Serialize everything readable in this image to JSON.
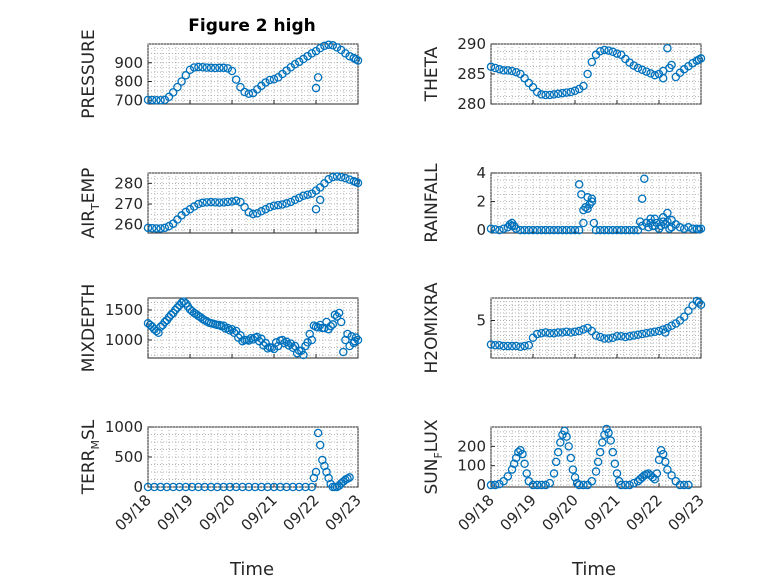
{
  "figure": {
    "title": "Figure 2 high",
    "xlabel": "Time",
    "date_ticks": [
      "09/18",
      "09/19",
      "09/20",
      "09/21",
      "09/22",
      "09/23"
    ],
    "marker_color": "#0072BD"
  },
  "chart_data": [
    {
      "type": "scatter",
      "id": "pressure",
      "ylabel": "PRESSURE",
      "ylabel_sub": "",
      "ylabel_post": "",
      "ylim": [
        680,
        1000
      ],
      "yticks": [
        700,
        800,
        900
      ],
      "xlim": [
        0,
        5
      ],
      "x": [
        0.0,
        0.1,
        0.2,
        0.3,
        0.4,
        0.5,
        0.6,
        0.7,
        0.8,
        0.9,
        1.0,
        1.1,
        1.2,
        1.3,
        1.4,
        1.5,
        1.6,
        1.7,
        1.8,
        1.9,
        2.0,
        2.1,
        2.2,
        2.3,
        2.4,
        2.5,
        2.6,
        2.7,
        2.8,
        2.9,
        3.0,
        3.1,
        3.2,
        3.3,
        3.4,
        3.5,
        3.6,
        3.7,
        3.8,
        3.9,
        4.0,
        4.1,
        4.2,
        4.3,
        4.4,
        4.5,
        4.6,
        4.7,
        4.8,
        4.9,
        4.95,
        5.0,
        4.0,
        4.05
      ],
      "y": [
        702,
        701,
        700,
        700,
        702,
        718,
        742,
        770,
        800,
        833,
        862,
        875,
        877,
        876,
        874,
        873,
        872,
        873,
        873,
        870,
        856,
        810,
        770,
        744,
        735,
        738,
        758,
        777,
        795,
        808,
        812,
        822,
        840,
        858,
        876,
        892,
        905,
        920,
        935,
        950,
        962,
        978,
        990,
        996,
        993,
        982,
        968,
        950,
        935,
        925,
        918,
        912,
        765,
        822
      ]
    },
    {
      "type": "scatter",
      "id": "theta",
      "ylabel": "THETA",
      "ylabel_sub": "",
      "ylabel_post": "",
      "ylim": [
        280,
        290
      ],
      "yticks": [
        280,
        285,
        290
      ],
      "xlim": [
        0,
        5
      ],
      "x": [
        0.0,
        0.1,
        0.2,
        0.3,
        0.4,
        0.5,
        0.6,
        0.7,
        0.8,
        0.9,
        1.0,
        1.1,
        1.2,
        1.3,
        1.4,
        1.5,
        1.6,
        1.7,
        1.8,
        1.9,
        2.0,
        2.1,
        2.2,
        2.3,
        2.4,
        2.5,
        2.6,
        2.7,
        2.8,
        2.9,
        3.0,
        3.1,
        3.2,
        3.3,
        3.4,
        3.5,
        3.6,
        3.7,
        3.8,
        3.9,
        4.0,
        4.1,
        4.2,
        4.3,
        4.4,
        4.5,
        4.6,
        4.7,
        4.8,
        4.9,
        4.95,
        5.0,
        4.1,
        4.25
      ],
      "y": [
        286.2,
        286.0,
        285.8,
        285.6,
        285.6,
        285.5,
        285.3,
        285.0,
        284.3,
        283.5,
        282.8,
        282.0,
        281.6,
        281.5,
        281.5,
        281.6,
        281.7,
        281.8,
        281.9,
        282.0,
        282.2,
        282.5,
        283.0,
        285.0,
        287.0,
        288.2,
        288.8,
        289.0,
        288.9,
        288.7,
        288.4,
        288.2,
        287.5,
        286.9,
        286.4,
        286.0,
        285.7,
        285.4,
        285.1,
        284.8,
        285.0,
        285.5,
        289.3,
        286.5,
        284.5,
        285.2,
        285.8,
        286.3,
        286.8,
        287.2,
        287.4,
        287.6,
        284.3,
        286.0
      ]
    },
    {
      "type": "scatter",
      "id": "air_temp",
      "ylabel": "AIR",
      "ylabel_sub": "T",
      "ylabel_post": "EMP",
      "ylim": [
        256,
        285
      ],
      "yticks": [
        260,
        270,
        280
      ],
      "xlim": [
        0,
        5
      ],
      "x": [
        0.0,
        0.1,
        0.2,
        0.3,
        0.4,
        0.5,
        0.6,
        0.7,
        0.8,
        0.9,
        1.0,
        1.1,
        1.2,
        1.3,
        1.4,
        1.5,
        1.6,
        1.7,
        1.8,
        1.9,
        2.0,
        2.1,
        2.2,
        2.3,
        2.4,
        2.5,
        2.6,
        2.7,
        2.8,
        2.9,
        3.0,
        3.1,
        3.2,
        3.3,
        3.4,
        3.5,
        3.6,
        3.7,
        3.8,
        3.9,
        4.0,
        4.1,
        4.2,
        4.3,
        4.4,
        4.5,
        4.6,
        4.7,
        4.8,
        4.9,
        4.95,
        5.0,
        4.0,
        4.1
      ],
      "y": [
        258.5,
        258.3,
        258.2,
        258.2,
        258.5,
        259.3,
        260.5,
        262.5,
        264.5,
        266.2,
        267.5,
        268.8,
        270.0,
        270.6,
        270.8,
        270.9,
        270.8,
        270.7,
        270.8,
        271.0,
        271.2,
        271.6,
        271.0,
        268.5,
        266.0,
        265.2,
        265.5,
        266.5,
        267.5,
        268.5,
        269.2,
        269.5,
        269.8,
        270.3,
        271.0,
        272.0,
        273.0,
        274.0,
        274.5,
        275.0,
        276.5,
        278.0,
        280.0,
        282.0,
        283.0,
        283.3,
        283.0,
        282.5,
        281.8,
        281.0,
        280.6,
        280.2,
        267.5,
        272.0
      ]
    },
    {
      "type": "scatter",
      "id": "rainfall",
      "ylabel": "RAINFALL",
      "ylabel_sub": "",
      "ylabel_post": "",
      "ylim": [
        -0.2,
        4
      ],
      "yticks": [
        0,
        2,
        4
      ],
      "xlim": [
        0,
        5
      ],
      "x": [
        0.0,
        0.1,
        0.2,
        0.3,
        0.4,
        0.5,
        0.6,
        0.7,
        0.8,
        0.9,
        1.0,
        1.1,
        1.2,
        1.3,
        1.4,
        1.5,
        1.6,
        1.7,
        1.8,
        1.9,
        2.0,
        2.1,
        2.2,
        2.3,
        2.4,
        2.5,
        2.6,
        2.7,
        2.8,
        2.9,
        3.0,
        3.1,
        3.2,
        3.3,
        3.4,
        3.5,
        3.6,
        3.7,
        3.8,
        3.9,
        4.0,
        4.1,
        4.2,
        4.3,
        4.4,
        4.5,
        4.6,
        4.7,
        4.8,
        4.9,
        4.95,
        5.0,
        0.45,
        0.5,
        0.55,
        2.1,
        2.15,
        2.2,
        2.25,
        2.3,
        2.35,
        2.4,
        2.45,
        3.55,
        3.6,
        3.65,
        3.7,
        3.75,
        3.8,
        3.85,
        3.9,
        3.95,
        4.05,
        4.1,
        4.15,
        4.2,
        4.25,
        4.3
      ],
      "y": [
        0.1,
        0.05,
        0.0,
        0.1,
        0.2,
        0.3,
        0.1,
        0.0,
        0.0,
        0.0,
        0.0,
        0.0,
        0.0,
        0.0,
        0.0,
        0.0,
        0.0,
        0.0,
        0.0,
        0.0,
        0.0,
        0.0,
        0.5,
        1.5,
        2.2,
        0.0,
        0.0,
        0.0,
        0.0,
        0.0,
        0.0,
        0.0,
        0.0,
        0.0,
        0.0,
        0.0,
        0.3,
        0.5,
        0.8,
        0.3,
        0.1,
        0.6,
        1.2,
        0.7,
        0.4,
        0.2,
        0.1,
        0.2,
        0.1,
        0.1,
        0.05,
        0.1,
        0.4,
        0.5,
        0.3,
        3.2,
        2.5,
        1.4,
        1.6,
        2.3,
        1.8,
        2.0,
        0.5,
        0.6,
        2.2,
        3.6,
        0.5,
        0.2,
        0.5,
        0.3,
        0.8,
        0.5,
        0.3,
        0.9,
        0.4,
        0.6,
        0.1,
        0.2
      ]
    },
    {
      "type": "scatter",
      "id": "mixdepth",
      "ylabel": "MIXDEPTH",
      "ylabel_sub": "",
      "ylabel_post": "",
      "ylim": [
        700,
        1700
      ],
      "yticks": [
        1000,
        1500
      ],
      "xlim": [
        0,
        5
      ],
      "x": [
        0.0,
        0.1,
        0.2,
        0.3,
        0.4,
        0.5,
        0.6,
        0.7,
        0.8,
        0.9,
        1.0,
        1.1,
        1.2,
        1.3,
        1.4,
        1.5,
        1.6,
        1.7,
        1.8,
        1.9,
        2.0,
        2.1,
        2.2,
        2.3,
        2.4,
        2.5,
        2.6,
        2.7,
        2.8,
        2.9,
        3.0,
        3.1,
        3.2,
        3.3,
        3.4,
        3.5,
        3.6,
        3.7,
        3.8,
        3.9,
        4.0,
        4.1,
        4.2,
        4.3,
        4.4,
        4.5,
        4.6,
        4.7,
        4.8,
        4.9,
        4.95,
        5.0,
        0.05,
        0.15,
        0.25,
        0.35,
        0.45,
        0.55,
        0.65,
        0.75,
        0.85,
        0.95,
        1.05,
        1.15,
        1.25,
        1.35,
        1.45,
        1.55,
        1.65,
        1.75,
        1.85,
        1.95,
        2.05,
        2.15,
        2.25,
        2.35,
        2.45,
        2.55,
        2.65,
        2.75,
        2.85,
        2.95,
        3.05,
        3.15,
        3.25,
        3.35,
        3.45,
        3.55,
        3.65,
        3.75,
        3.85,
        3.95,
        4.05,
        4.15,
        4.25,
        4.35,
        4.45,
        4.55,
        4.65,
        4.75,
        4.85,
        4.92
      ],
      "y": [
        1280,
        1220,
        1150,
        1220,
        1300,
        1380,
        1450,
        1540,
        1620,
        1610,
        1510,
        1450,
        1400,
        1350,
        1310,
        1280,
        1260,
        1250,
        1240,
        1200,
        1180,
        1150,
        1080,
        1000,
        990,
        1010,
        1050,
        1020,
        950,
        880,
        850,
        900,
        1000,
        970,
        940,
        900,
        820,
        750,
        960,
        1000,
        1220,
        1250,
        1200,
        1180,
        1260,
        1390,
        1300,
        1000,
        900,
        950,
        1040,
        1000,
        1250,
        1180,
        1120,
        1250,
        1330,
        1420,
        1500,
        1580,
        1640,
        1560,
        1480,
        1430,
        1380,
        1330,
        1290,
        1270,
        1250,
        1230,
        1190,
        1160,
        1120,
        1040,
        980,
        1000,
        1030,
        1040,
        980,
        910,
        860,
        870,
        960,
        990,
        950,
        910,
        870,
        780,
        820,
        900,
        1100,
        1240,
        1210,
        1200,
        1300,
        1230,
        1420,
        1450,
        800,
        1100,
        1060,
        980
      ]
    },
    {
      "type": "scatter",
      "id": "h2omixra",
      "ylabel": "H2OMIXRA",
      "ylabel_sub": "",
      "ylabel_post": "",
      "ylim": [
        0,
        8
      ],
      "yticks": [
        5
      ],
      "xlim": [
        0,
        5
      ],
      "x": [
        0.0,
        0.1,
        0.2,
        0.3,
        0.4,
        0.5,
        0.6,
        0.7,
        0.8,
        0.9,
        1.0,
        1.1,
        1.2,
        1.3,
        1.4,
        1.5,
        1.6,
        1.7,
        1.8,
        1.9,
        2.0,
        2.1,
        2.2,
        2.3,
        2.4,
        2.5,
        2.6,
        2.7,
        2.8,
        2.9,
        3.0,
        3.1,
        3.2,
        3.3,
        3.4,
        3.5,
        3.6,
        3.7,
        3.8,
        3.9,
        4.0,
        4.1,
        4.2,
        4.3,
        4.4,
        4.5,
        4.6,
        4.7,
        4.8,
        4.9,
        4.95,
        5.0,
        4.15
      ],
      "y": [
        1.8,
        1.7,
        1.7,
        1.6,
        1.6,
        1.6,
        1.6,
        1.5,
        1.6,
        1.7,
        2.7,
        3.2,
        3.3,
        3.4,
        3.3,
        3.3,
        3.4,
        3.4,
        3.5,
        3.4,
        3.5,
        3.6,
        3.8,
        4.0,
        3.6,
        3.0,
        2.8,
        2.6,
        2.6,
        2.7,
        2.9,
        2.9,
        2.8,
        2.9,
        3.0,
        3.1,
        3.2,
        3.3,
        3.4,
        3.5,
        3.6,
        3.8,
        4.0,
        4.3,
        4.6,
        5.0,
        5.5,
        6.3,
        7.0,
        7.6,
        7.4,
        7.1,
        3.4
      ]
    },
    {
      "type": "scatter",
      "id": "terr_msl",
      "ylabel": "TERR",
      "ylabel_sub": "M",
      "ylabel_post": "SL",
      "ylim": [
        0,
        1000
      ],
      "yticks": [
        0,
        500,
        1000
      ],
      "xlim": [
        0,
        5
      ],
      "x": [
        0.0,
        0.15,
        0.3,
        0.45,
        0.6,
        0.75,
        0.9,
        1.05,
        1.2,
        1.35,
        1.5,
        1.65,
        1.8,
        1.95,
        2.1,
        2.25,
        2.4,
        2.55,
        2.7,
        2.85,
        3.0,
        3.15,
        3.3,
        3.45,
        3.6,
        3.75,
        3.9,
        3.95,
        4.0,
        4.05,
        4.1,
        4.15,
        4.2,
        4.25,
        4.3,
        4.35,
        4.4,
        4.45,
        4.5,
        4.55,
        4.6,
        4.65,
        4.7,
        4.75,
        4.8
      ],
      "y": [
        0,
        0,
        0,
        0,
        0,
        0,
        0,
        0,
        0,
        0,
        0,
        0,
        0,
        0,
        0,
        0,
        0,
        0,
        0,
        0,
        0,
        0,
        0,
        0,
        0,
        0,
        0,
        150,
        250,
        900,
        700,
        450,
        350,
        250,
        150,
        50,
        0,
        0,
        0,
        20,
        60,
        90,
        120,
        140,
        160
      ]
    },
    {
      "type": "scatter",
      "id": "sun_flux",
      "ylabel": "SUN",
      "ylabel_sub": "F",
      "ylabel_post": "LUX",
      "ylim": [
        -10,
        300
      ],
      "yticks": [
        0,
        100,
        200
      ],
      "xlim": [
        0,
        5
      ],
      "x": [
        0.0,
        0.1,
        0.2,
        0.3,
        0.4,
        0.5,
        0.55,
        0.6,
        0.65,
        0.7,
        0.75,
        0.8,
        0.85,
        0.9,
        1.0,
        1.1,
        1.2,
        1.3,
        1.4,
        1.5,
        1.55,
        1.6,
        1.65,
        1.7,
        1.75,
        1.8,
        1.85,
        1.9,
        1.95,
        2.0,
        2.05,
        2.1,
        2.2,
        2.3,
        2.4,
        2.5,
        2.55,
        2.6,
        2.65,
        2.7,
        2.75,
        2.8,
        2.85,
        2.9,
        2.95,
        3.0,
        3.05,
        3.1,
        3.2,
        3.3,
        3.4,
        3.5,
        3.55,
        3.6,
        3.65,
        3.7,
        3.75,
        3.8,
        3.85,
        3.9,
        3.95,
        4.0,
        4.05,
        4.1,
        4.15,
        4.2,
        4.3,
        4.4,
        4.5,
        4.6,
        4.7
      ],
      "y": [
        0,
        0,
        5,
        20,
        45,
        80,
        110,
        140,
        170,
        180,
        160,
        110,
        60,
        20,
        0,
        0,
        0,
        0,
        10,
        60,
        120,
        170,
        220,
        260,
        280,
        250,
        200,
        140,
        80,
        40,
        10,
        0,
        0,
        0,
        20,
        70,
        120,
        170,
        220,
        260,
        290,
        270,
        230,
        170,
        110,
        60,
        20,
        0,
        0,
        0,
        10,
        20,
        30,
        40,
        50,
        55,
        60,
        50,
        40,
        30,
        60,
        130,
        180,
        160,
        120,
        80,
        50,
        20,
        0,
        0,
        0
      ]
    }
  ]
}
